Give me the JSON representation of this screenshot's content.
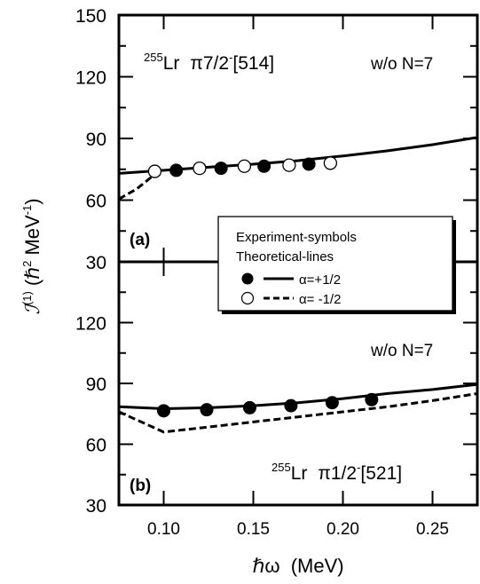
{
  "chart_data": [
    {
      "panel_label": "(a)",
      "type": "line",
      "nucleus": {
        "mass": "255",
        "element": "Lr"
      },
      "config": {
        "prefix": "π7/2",
        "parity": "-",
        "nilsson": "[514]"
      },
      "note": "w/o N=7",
      "xlim": [
        0.075,
        0.275
      ],
      "ylim": [
        30,
        150
      ],
      "yticks": [
        "30",
        "60",
        "90",
        "120",
        "150"
      ],
      "series": [
        {
          "name": "α=+1/2",
          "kind": "theory",
          "line_style": "solid",
          "x": [
            0.075,
            0.1,
            0.125,
            0.15,
            0.175,
            0.2,
            0.225,
            0.25,
            0.275
          ],
          "y": [
            73.0,
            74.5,
            76.0,
            77.5,
            79.2,
            81.5,
            84.0,
            87.0,
            90.5
          ]
        },
        {
          "name": "α=-1/2",
          "kind": "theory",
          "line_style": "dashed",
          "x": [
            0.075,
            0.085,
            0.095
          ],
          "y": [
            60.5,
            65.5,
            72.5
          ]
        },
        {
          "name": "α=+1/2",
          "kind": "experiment",
          "marker": "filled-circle",
          "x": [
            0.107,
            0.132,
            0.156,
            0.181
          ],
          "y": [
            74.5,
            75.5,
            76.5,
            77.5
          ]
        },
        {
          "name": "α=-1/2",
          "kind": "experiment",
          "marker": "open-circle",
          "x": [
            0.095,
            0.12,
            0.145,
            0.17,
            0.193
          ],
          "y": [
            74.0,
            75.5,
            76.5,
            77.0,
            78.0
          ]
        }
      ]
    },
    {
      "panel_label": "(b)",
      "type": "line",
      "nucleus": {
        "mass": "255",
        "element": "Lr"
      },
      "config": {
        "prefix": "π1/2",
        "parity": "-",
        "nilsson": "[521]"
      },
      "note": "w/o N=7",
      "xlim": [
        0.075,
        0.275
      ],
      "ylim": [
        30,
        150
      ],
      "yticks": [
        "30",
        "60",
        "90",
        "120"
      ],
      "series": [
        {
          "name": "α=+1/2",
          "kind": "theory",
          "line_style": "solid",
          "x": [
            0.075,
            0.1,
            0.125,
            0.15,
            0.175,
            0.2,
            0.225,
            0.25,
            0.275
          ],
          "y": [
            78.5,
            77.5,
            78.0,
            79.0,
            80.5,
            82.5,
            85.0,
            87.0,
            89.5
          ]
        },
        {
          "name": "α=-1/2",
          "kind": "theory",
          "line_style": "dashed",
          "x": [
            0.075,
            0.1,
            0.125,
            0.15,
            0.175,
            0.2,
            0.225,
            0.25,
            0.275
          ],
          "y": [
            76.0,
            66.0,
            68.5,
            71.0,
            73.5,
            76.0,
            78.5,
            81.5,
            85.0
          ]
        },
        {
          "name": "α=+1/2",
          "kind": "experiment",
          "marker": "filled-circle",
          "x": [
            0.1,
            0.124,
            0.148,
            0.171,
            0.194,
            0.216
          ],
          "y": [
            76.5,
            77.0,
            78.0,
            79.0,
            80.5,
            82.0
          ]
        }
      ]
    }
  ],
  "x_axis": {
    "label": "ℏω  (MeV)",
    "ticks": [
      "0.10",
      "0.15",
      "0.20",
      "0.25"
    ],
    "tick_values": [
      0.1,
      0.15,
      0.2,
      0.25
    ]
  },
  "y_axis": {
    "label_symbol": "ℐ",
    "label_sup": "(1)",
    "label_units": "(ℏ",
    "label_units_sup": "2",
    "label_units_tail": " MeV",
    "label_units_exp": "-1",
    "label_close": ")"
  },
  "legend": {
    "header_1": "Experiment-symbols",
    "header_2": "Theoretical-lines",
    "entry_plus": "α=+1/2",
    "entry_minus": "α= -1/2"
  }
}
